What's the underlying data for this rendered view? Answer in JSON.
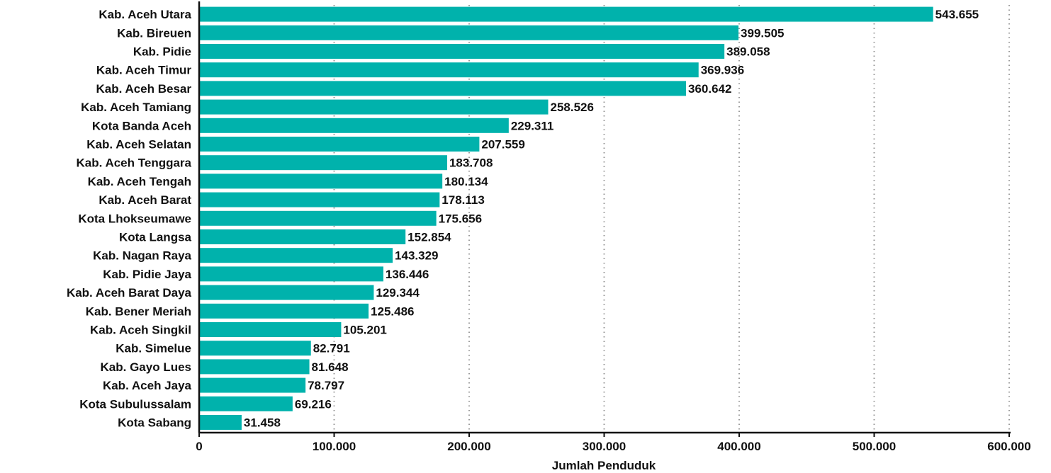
{
  "chart_data": {
    "type": "bar",
    "orientation": "horizontal",
    "categories": [
      "Kab. Aceh Utara",
      "Kab. Bireuen",
      "Kab. Pidie",
      "Kab. Aceh Timur",
      "Kab. Aceh Besar",
      "Kab. Aceh Tamiang",
      "Kota Banda Aceh",
      "Kab. Aceh Selatan",
      "Kab. Aceh Tenggara",
      "Kab. Aceh Tengah",
      "Kab. Aceh Barat",
      "Kota Lhokseumawe",
      "Kota Langsa",
      "Kab. Nagan Raya",
      "Kab. Pidie Jaya",
      "Kab. Aceh Barat Daya",
      "Kab. Bener Meriah",
      "Kab. Aceh Singkil",
      "Kab. Simelue",
      "Kab. Gayo Lues",
      "Kab. Aceh Jaya",
      "Kota Subulussalam",
      "Kota Sabang"
    ],
    "values": [
      543655,
      399505,
      389058,
      369936,
      360642,
      258526,
      229311,
      207559,
      183708,
      180134,
      178113,
      175656,
      152854,
      143329,
      136446,
      129344,
      125486,
      105201,
      82791,
      81648,
      78797,
      69216,
      31458
    ],
    "value_labels": [
      "543.655",
      "399.505",
      "389.058",
      "369.936",
      "360.642",
      "258.526",
      "229.311",
      "207.559",
      "183.708",
      "180.134",
      "178.113",
      "175.656",
      "152.854",
      "143.329",
      "136.446",
      "129.344",
      "125.486",
      "105.201",
      "82.791",
      "81.648",
      "78.797",
      "69.216",
      "31.458"
    ],
    "xlabel": "Jumlah Penduduk",
    "ylabel": "",
    "title": "",
    "xlim": [
      0,
      600000
    ],
    "xticks": [
      0,
      100000,
      200000,
      300000,
      400000,
      500000,
      600000
    ],
    "xtick_labels": [
      "0",
      "100.000",
      "200.000",
      "300.000",
      "400.000",
      "500.000",
      "600.000"
    ],
    "grid": "vertical dotted",
    "bar_color": "#00B2AC"
  }
}
